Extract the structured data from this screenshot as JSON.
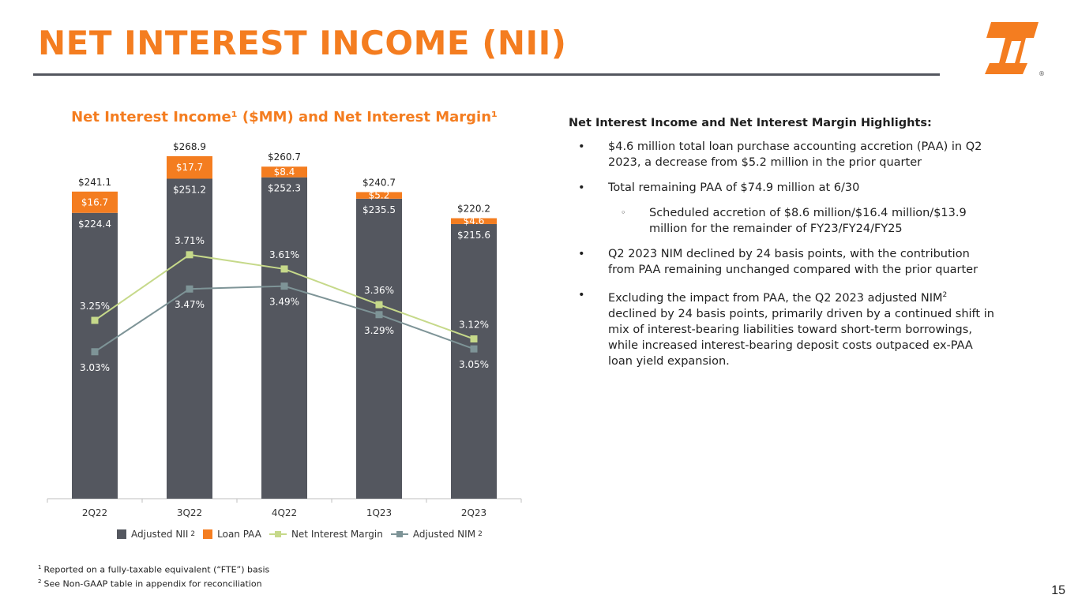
{
  "slide": {
    "title": "NET INTEREST INCOME (NII)",
    "page_number": "15"
  },
  "colors": {
    "accent": "#f47d20",
    "adjusted_nii": "#54575f",
    "loan_paa": "#f47d20",
    "net_interest_margin": "#c6d98a",
    "adjusted_nim": "#7e9497"
  },
  "chart_data": {
    "type": "bar",
    "title": "Net Interest Income¹ ($MM) and Net Interest Margin¹",
    "categories": [
      "2Q22",
      "3Q22",
      "4Q22",
      "1Q23",
      "2Q23"
    ],
    "stacked": true,
    "series": [
      {
        "name": "Adjusted NII",
        "type": "bar",
        "values": [
          224.4,
          251.2,
          252.3,
          235.5,
          215.6
        ],
        "labels": [
          "$224.4",
          "$251.2",
          "$252.3",
          "$235.5",
          "$215.6"
        ]
      },
      {
        "name": "Loan PAA",
        "type": "bar",
        "values": [
          16.7,
          17.7,
          8.4,
          5.2,
          4.6
        ],
        "labels": [
          "$16.7",
          "$17.7",
          "$8.4",
          "$5.2",
          "$4.6"
        ]
      },
      {
        "name": "Net Interest Margin",
        "type": "line",
        "axis": "secondary",
        "values": [
          3.25,
          3.71,
          3.61,
          3.36,
          3.12
        ],
        "labels": [
          "3.25%",
          "3.71%",
          "3.61%",
          "3.36%",
          "3.12%"
        ]
      },
      {
        "name": "Adjusted NIM",
        "type": "line",
        "axis": "secondary",
        "values": [
          3.03,
          3.47,
          3.49,
          3.29,
          3.05
        ],
        "labels": [
          "3.03%",
          "3.47%",
          "3.49%",
          "3.29%",
          "3.05%"
        ]
      }
    ],
    "totals": [
      241.1,
      268.9,
      260.7,
      240.7,
      220.2
    ],
    "total_labels": [
      "$241.1",
      "$268.9",
      "$260.7",
      "$240.7",
      "$220.2"
    ],
    "ylim": [
      0,
      280
    ],
    "y2lim": [
      2.0,
      4.5
    ],
    "grid": false,
    "legend": {
      "position": "bottom",
      "items": [
        {
          "label": "Adjusted NII",
          "sup": "2"
        },
        {
          "label": "Loan PAA",
          "sup": ""
        },
        {
          "label": "Net Interest Margin",
          "sup": ""
        },
        {
          "label": "Adjusted NIM",
          "sup": "2"
        }
      ]
    }
  },
  "highlights": {
    "heading": "Net Interest Income and Net Interest Margin Highlights:",
    "bullets": [
      "$4.6 million total loan purchase accounting accretion (PAA) in Q2 2023, a decrease from $5.2 million in the prior quarter",
      "Total remaining PAA of $74.9 million at 6/30",
      "Q2 2023 NIM declined by 24 basis points, with the contribution from PAA remaining unchanged compared with the prior quarter"
    ],
    "sub_bullet": "Scheduled accretion of $8.6 million/$16.4 million/$13.9 million for the remainder of FY23/FY24/FY25",
    "bullet4_before": "Excluding the impact from PAA, the Q2 2023 adjusted NIM",
    "bullet4_sup": "2",
    "bullet4_after": " declined by 24 basis points, primarily driven by a continued shift in mix of interest-bearing liabilities toward short-term borrowings, while increased interest-bearing deposit costs outpaced ex-PAA loan yield expansion.",
    "bullet_symbol": "•",
    "sub_bullet_symbol": "◦"
  },
  "footnotes": [
    {
      "num": "1",
      "text": "Reported on a fully-taxable equivalent (“FTE”) basis"
    },
    {
      "num": "2",
      "text": "See Non-GAAP table in appendix for reconciliation"
    }
  ]
}
